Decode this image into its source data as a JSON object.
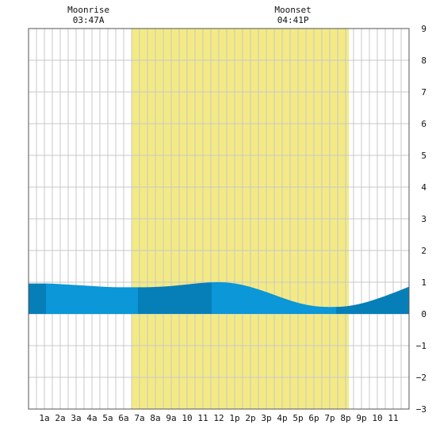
{
  "colors": {
    "background": "#ffffff",
    "grid": "#c8c8c8",
    "daylight": "#f3ea85",
    "tide_light": "#0b97d8",
    "tide_dark": "#067fb8",
    "frame": "#555555"
  },
  "moon": {
    "rise_title": "Moonrise",
    "rise_time": "03:47A",
    "set_title": "Moonset",
    "set_time": "04:41P"
  },
  "chart_data": {
    "type": "area",
    "x_unit": "hour",
    "xlim": [
      0,
      24
    ],
    "ylim": [
      -3,
      9
    ],
    "grid": true,
    "x_ticks": [
      1,
      2,
      3,
      4,
      5,
      6,
      7,
      8,
      9,
      10,
      11,
      12,
      13,
      14,
      15,
      16,
      17,
      18,
      19,
      20,
      21,
      22,
      23
    ],
    "x_tick_labels": [
      "1a",
      "2a",
      "3a",
      "4a",
      "5a",
      "6a",
      "7a",
      "8a",
      "9a",
      "10",
      "11",
      "12",
      "1p",
      "2p",
      "3p",
      "4p",
      "5p",
      "6p",
      "7p",
      "8p",
      "9p",
      "10",
      "11"
    ],
    "y_ticks": [
      -3,
      -2,
      -1,
      0,
      1,
      2,
      3,
      4,
      5,
      6,
      7,
      8,
      9
    ],
    "y_tick_labels": [
      "−3",
      "−2",
      "−1",
      "0",
      "1",
      "2",
      "3",
      "4",
      "5",
      "6",
      "7",
      "8",
      "9"
    ],
    "daylight": {
      "start": 6.5,
      "end": 20.2
    },
    "moonrise_hour": 3.78,
    "moonset_hour": 16.68,
    "shading_breaks": [
      1.1,
      6.9,
      11.55,
      19.4
    ],
    "tide": {
      "x": [
        0,
        1,
        2,
        3,
        4,
        5,
        6,
        7,
        8,
        9,
        10,
        11,
        12,
        13,
        14,
        15,
        16,
        17,
        18,
        19,
        20,
        21,
        22,
        23,
        24
      ],
      "y": [
        0.96,
        0.96,
        0.94,
        0.91,
        0.88,
        0.85,
        0.84,
        0.84,
        0.85,
        0.88,
        0.93,
        0.98,
        1.0,
        0.96,
        0.85,
        0.69,
        0.51,
        0.35,
        0.25,
        0.22,
        0.24,
        0.33,
        0.48,
        0.66,
        0.86
      ]
    }
  }
}
